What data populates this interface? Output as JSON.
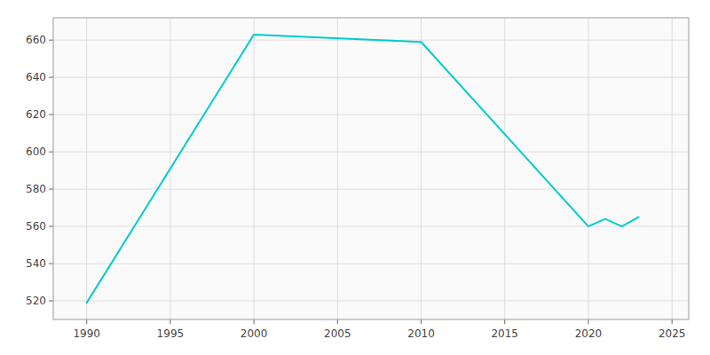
{
  "chart_data": {
    "type": "line",
    "x": [
      1990,
      2000,
      2010,
      2020,
      2021,
      2022,
      2023
    ],
    "values": [
      519,
      663,
      659,
      560,
      564,
      560,
      565
    ],
    "color": "#00CCCC",
    "xlim": [
      1988,
      2026
    ],
    "ylim": [
      510,
      672
    ],
    "xticks": [
      1990,
      1995,
      2000,
      2005,
      2010,
      2015,
      2020,
      2025
    ],
    "yticks": [
      520,
      540,
      560,
      580,
      600,
      620,
      640,
      660
    ],
    "grid": true
  }
}
